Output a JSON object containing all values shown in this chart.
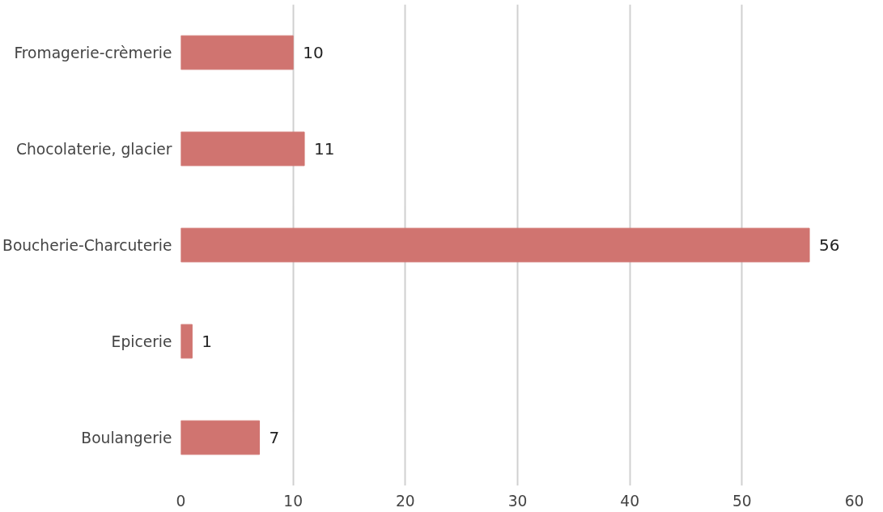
{
  "chart_data": {
    "type": "bar",
    "orientation": "horizontal",
    "categories": [
      "Fromagerie-crèmerie",
      "Chocolaterie, glacier",
      "Boucherie-Charcuterie",
      "Epicerie",
      "Boulangerie"
    ],
    "values": [
      10,
      11,
      56,
      1,
      7
    ],
    "color": "#d07470",
    "xlim": [
      0,
      60
    ],
    "xticks": [
      0,
      10,
      20,
      30,
      40,
      50,
      60
    ],
    "grid": "x",
    "data_labels": true
  }
}
